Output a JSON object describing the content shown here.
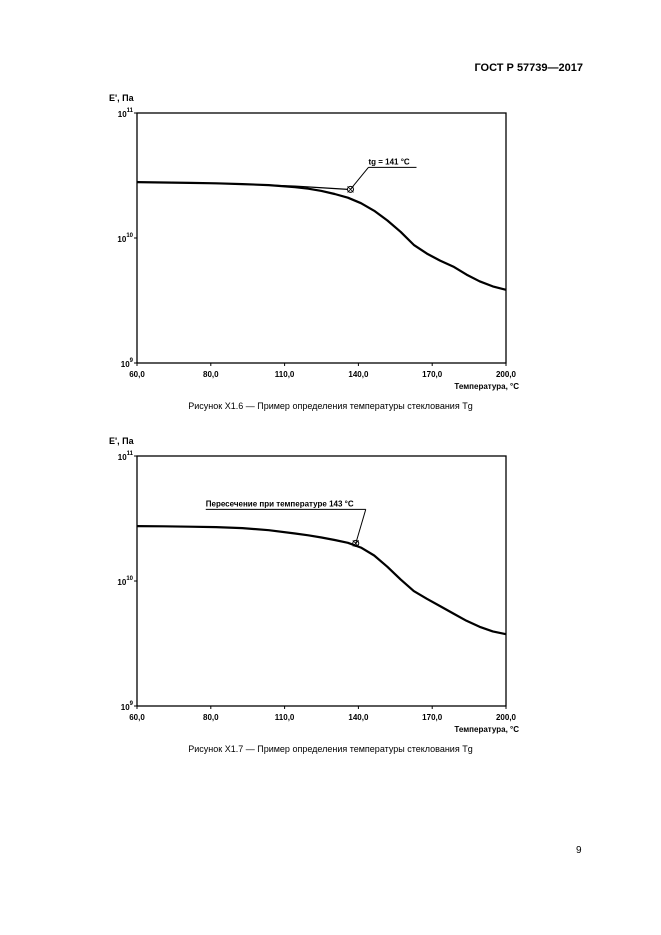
{
  "header": {
    "standard": "ГОСТ Р 57739—2017"
  },
  "page_number": "9",
  "chart_data": [
    {
      "type": "line",
      "y_scale": "log",
      "ylabel": "E', Па",
      "xlabel": "Температура, °C",
      "xlim": [
        60,
        200
      ],
      "ylim": [
        1000000000.0,
        100000000000.0
      ],
      "x_ticks": [
        "60,0",
        "80,0",
        "110,0",
        "140,0",
        "170,0",
        "200,0"
      ],
      "y_ticks": [
        {
          "base": "10",
          "exp": "11"
        },
        {
          "base": "10",
          "exp": "10"
        },
        {
          "base": "10",
          "exp": "9"
        }
      ],
      "annotation": {
        "text": "tg = 141 °C",
        "x": 141,
        "y": 24500000000.0
      },
      "series": [
        {
          "x": [
            60,
            70,
            80,
            90,
            100,
            110,
            120,
            125,
            130,
            135,
            140,
            145,
            150,
            155,
            160,
            165,
            170,
            175,
            180,
            185,
            190,
            195,
            200
          ],
          "y": [
            28000000000.0,
            27800000000.0,
            27600000000.0,
            27400000000.0,
            27000000000.0,
            26500000000.0,
            25500000000.0,
            24800000000.0,
            23800000000.0,
            22500000000.0,
            21000000000.0,
            19000000000.0,
            16500000000.0,
            13800000000.0,
            11200000000.0,
            8800000000.0,
            7500000000.0,
            6600000000.0,
            5900000000.0,
            5100000000.0,
            4500000000.0,
            4100000000.0,
            3850000000.0
          ]
        },
        {
          "x": [
            60,
            80,
            100,
            120,
            140
          ],
          "y": [
            28000000000.0,
            27600000000.0,
            27000000000.0,
            26000000000.0,
            24500000000.0
          ]
        }
      ]
    },
    {
      "type": "line",
      "y_scale": "log",
      "ylabel": "E', Па",
      "xlabel": "Температура, °C",
      "xlim": [
        60,
        200
      ],
      "ylim": [
        1000000000.0,
        100000000000.0
      ],
      "x_ticks": [
        "60,0",
        "80,0",
        "110,0",
        "140,0",
        "170,0",
        "200,0"
      ],
      "y_ticks": [
        {
          "base": "10",
          "exp": "11"
        },
        {
          "base": "10",
          "exp": "10"
        },
        {
          "base": "10",
          "exp": "9"
        }
      ],
      "annotation": {
        "text": "Пересечение при температуре 143 °C",
        "x": 143,
        "y": 20000000000.0
      },
      "series": [
        {
          "x": [
            60,
            70,
            80,
            90,
            100,
            110,
            120,
            125,
            130,
            135,
            140,
            145,
            150,
            155,
            160,
            165,
            170,
            175,
            180,
            185,
            190,
            195,
            200
          ],
          "y": [
            27500000000.0,
            27400000000.0,
            27200000000.0,
            27000000000.0,
            26500000000.0,
            25500000000.0,
            24000000000.0,
            23200000000.0,
            22300000000.0,
            21300000000.0,
            20200000000.0,
            18500000000.0,
            16000000000.0,
            13000000000.0,
            10300000000.0,
            8300000000.0,
            7200000000.0,
            6300000000.0,
            5500000000.0,
            4800000000.0,
            4300000000.0,
            3950000000.0,
            3750000000.0
          ]
        }
      ]
    }
  ],
  "captions": [
    "Рисунок X1.6 — Пример определения температуры стеклования Tg",
    "Рисунок X1.7 — Пример определения температуры стеклования Tg"
  ]
}
